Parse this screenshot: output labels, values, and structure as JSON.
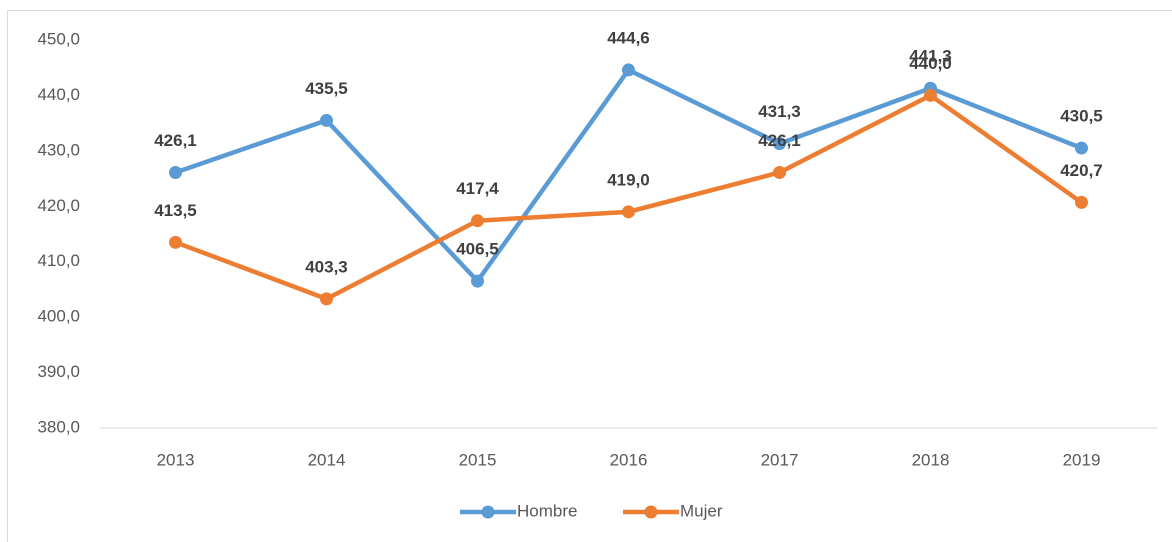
{
  "chart_data": {
    "type": "line",
    "categories": [
      "2013",
      "2014",
      "2015",
      "2016",
      "2017",
      "2018",
      "2019"
    ],
    "series": [
      {
        "name": "Hombre",
        "color": "#5b9bd5",
        "values": [
          426.1,
          435.5,
          406.5,
          444.6,
          431.3,
          441.3,
          430.5
        ],
        "value_labels": [
          "426,1",
          "435,5",
          "406,5",
          "444,6",
          "431,3",
          "441,3",
          "430,5"
        ]
      },
      {
        "name": "Mujer",
        "color": "#ed7d31",
        "values": [
          413.5,
          403.3,
          417.4,
          419.0,
          426.1,
          440.0,
          420.7
        ],
        "value_labels": [
          "413,5",
          "403,3",
          "417,4",
          "419,0",
          "426,1",
          "440,0",
          "420,7"
        ]
      }
    ],
    "ylim": [
      380,
      450
    ],
    "yticks": [
      {
        "value": 380,
        "label": "380,0"
      },
      {
        "value": 390,
        "label": "390,0"
      },
      {
        "value": 400,
        "label": "400,0"
      },
      {
        "value": 410,
        "label": "410,0"
      },
      {
        "value": 420,
        "label": "420,0"
      },
      {
        "value": 430,
        "label": "430,0"
      },
      {
        "value": 440,
        "label": "440,0"
      },
      {
        "value": 450,
        "label": "450,0"
      }
    ],
    "legend": "bottom"
  }
}
